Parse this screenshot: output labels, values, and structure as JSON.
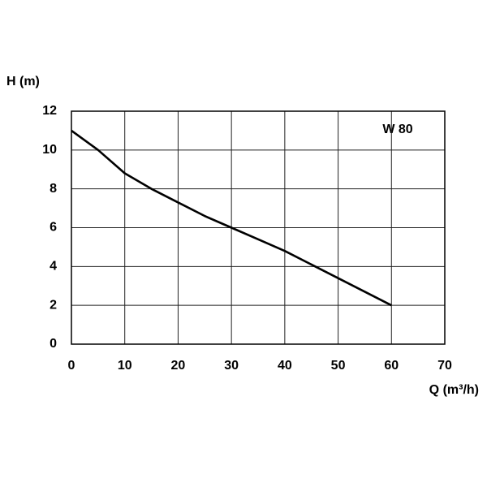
{
  "chart_data": {
    "type": "line",
    "ylabel": "H (m)",
    "xlabel": "Q (m³/h)",
    "annotation": "W 80",
    "x": [
      0,
      5,
      10,
      15,
      20,
      25,
      30,
      35,
      40,
      45,
      50,
      55,
      60
    ],
    "values": [
      11,
      10,
      8.8,
      8,
      7.3,
      6.6,
      6,
      5.4,
      4.8,
      4.1,
      3.4,
      2.7,
      2
    ],
    "color": "#000000",
    "xlim": [
      0,
      70
    ],
    "xticks": [
      0,
      10,
      20,
      30,
      40,
      50,
      60,
      70
    ],
    "ylim": [
      0,
      12
    ],
    "yticks": [
      0,
      2,
      4,
      6,
      8,
      10,
      12
    ],
    "grid": true
  }
}
